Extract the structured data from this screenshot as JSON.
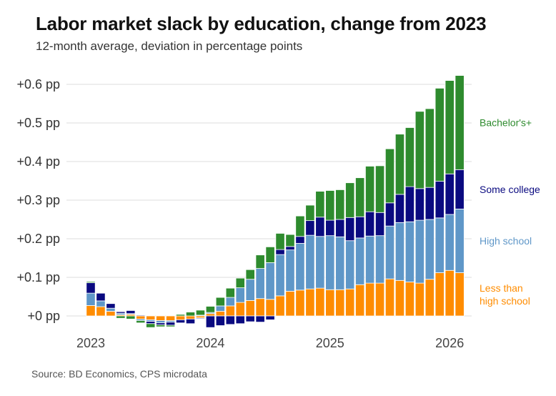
{
  "header": {
    "title": "Labor market slack by education, change from 2023",
    "subtitle": "12-month average, deviation in percentage points"
  },
  "footer": {
    "source": "Source: BD Economics, CPS microdata"
  },
  "colors": {
    "bachelors": "#2E8B2E",
    "some_college": "#0A0A80",
    "high_school": "#5F97C8",
    "less_than_hs": "#FF8C00",
    "grid": "#dddddd"
  },
  "chart_data": {
    "type": "bar",
    "stacked": true,
    "title": "Labor market slack by education, change from 2023",
    "subtitle": "12-month average, deviation in percentage points",
    "xlabel": "",
    "ylabel": "",
    "ylim": [
      -0.045,
      0.655
    ],
    "yticks": [
      0,
      0.1,
      0.2,
      0.3,
      0.4,
      0.5,
      0.6
    ],
    "ytick_labels": [
      "+0 pp",
      "+0.1 pp",
      "+0.2 pp",
      "+0.3 pp",
      "+0.4 pp",
      "+0.5 pp",
      "+0.6 pp"
    ],
    "xticks": [
      {
        "index": 0,
        "label": "2023"
      },
      {
        "index": 12,
        "label": "2024"
      },
      {
        "index": 24,
        "label": "2025"
      },
      {
        "index": 36,
        "label": "2026"
      }
    ],
    "grid": true,
    "legend_placement": "right, inline labels",
    "categories": [
      "2023-01",
      "2023-02",
      "2023-03",
      "2023-04",
      "2023-05",
      "2023-06",
      "2023-07",
      "2023-08",
      "2023-09",
      "2023-10",
      "2023-11",
      "2023-12",
      "2024-01",
      "2024-02",
      "2024-03",
      "2024-04",
      "2024-05",
      "2024-06",
      "2024-07",
      "2024-08",
      "2024-09",
      "2024-10",
      "2024-11",
      "2024-12",
      "2025-01",
      "2025-02",
      "2025-03",
      "2025-04",
      "2025-05",
      "2025-06",
      "2025-07",
      "2025-08",
      "2025-09",
      "2025-10",
      "2025-11",
      "2025-12",
      "2026-01",
      "2026-02"
    ],
    "series": [
      {
        "name": "Less than high school",
        "label_lines": [
          "Less than",
          "high school"
        ],
        "key": "less_than_hs",
        "values": [
          0.027,
          0.024,
          0.012,
          0.003,
          0.004,
          -0.008,
          -0.01,
          -0.012,
          -0.012,
          -0.01,
          -0.008,
          -0.005,
          0.006,
          0.012,
          0.026,
          0.035,
          0.04,
          0.045,
          0.043,
          0.052,
          0.064,
          0.067,
          0.07,
          0.072,
          0.068,
          0.068,
          0.07,
          0.081,
          0.085,
          0.085,
          0.096,
          0.092,
          0.088,
          0.085,
          0.095,
          0.112,
          0.118,
          0.112
        ]
      },
      {
        "name": "High school",
        "label_lines": [
          "High school"
        ],
        "key": "high_school",
        "values": [
          0.032,
          0.015,
          0.008,
          0.004,
          0.002,
          -0.004,
          -0.004,
          -0.006,
          -0.004,
          0.0,
          0.0,
          0.002,
          0.003,
          0.014,
          0.022,
          0.038,
          0.055,
          0.078,
          0.095,
          0.107,
          0.107,
          0.121,
          0.139,
          0.134,
          0.14,
          0.137,
          0.125,
          0.121,
          0.122,
          0.123,
          0.137,
          0.15,
          0.156,
          0.163,
          0.155,
          0.142,
          0.145,
          0.165
        ]
      },
      {
        "name": "Some college",
        "label_lines": [
          "Some college"
        ],
        "key": "some_college",
        "values": [
          0.027,
          0.02,
          0.012,
          0.004,
          0.008,
          0.002,
          -0.006,
          -0.005,
          -0.008,
          -0.008,
          -0.012,
          -0.002,
          -0.03,
          -0.025,
          -0.022,
          -0.02,
          -0.015,
          -0.016,
          -0.01,
          0.013,
          0.009,
          0.018,
          0.038,
          0.05,
          0.04,
          0.045,
          0.06,
          0.055,
          0.063,
          0.06,
          0.06,
          0.073,
          0.091,
          0.082,
          0.083,
          0.095,
          0.105,
          0.102
        ]
      },
      {
        "name": "Bachelor's+",
        "label_lines": [
          "Bachelor's+"
        ],
        "key": "bachelors",
        "values": [
          0.003,
          0.001,
          0.0,
          -0.006,
          -0.008,
          -0.006,
          -0.01,
          -0.005,
          -0.004,
          0.004,
          0.01,
          0.013,
          0.016,
          0.022,
          0.024,
          0.025,
          0.025,
          0.035,
          0.041,
          0.042,
          0.031,
          0.053,
          0.04,
          0.067,
          0.077,
          0.077,
          0.09,
          0.101,
          0.118,
          0.121,
          0.14,
          0.156,
          0.153,
          0.2,
          0.204,
          0.241,
          0.242,
          0.244
        ]
      }
    ]
  }
}
